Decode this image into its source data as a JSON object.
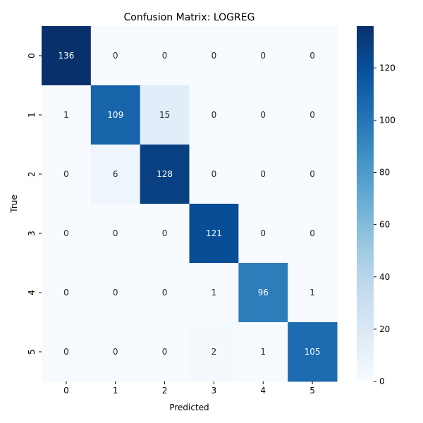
{
  "chart_data": {
    "type": "heatmap",
    "title": "Confusion Matrix: LOGREG",
    "xlabel": "Predicted",
    "ylabel": "True",
    "x_categories": [
      "0",
      "1",
      "2",
      "3",
      "4",
      "5"
    ],
    "y_categories": [
      "0",
      "1",
      "2",
      "3",
      "4",
      "5"
    ],
    "values": [
      [
        136,
        0,
        0,
        0,
        0,
        0
      ],
      [
        1,
        109,
        15,
        0,
        0,
        0
      ],
      [
        0,
        6,
        128,
        0,
        0,
        0
      ],
      [
        0,
        0,
        0,
        121,
        0,
        0
      ],
      [
        0,
        0,
        0,
        1,
        96,
        1
      ],
      [
        0,
        0,
        0,
        2,
        1,
        105
      ]
    ],
    "colorbar": {
      "range": [
        0,
        136
      ],
      "ticks": [
        0,
        20,
        40,
        60,
        80,
        100,
        120
      ],
      "colormap": "Blues",
      "low_color": "#f7fbff",
      "high_color": "#08306b"
    },
    "grid": false
  }
}
